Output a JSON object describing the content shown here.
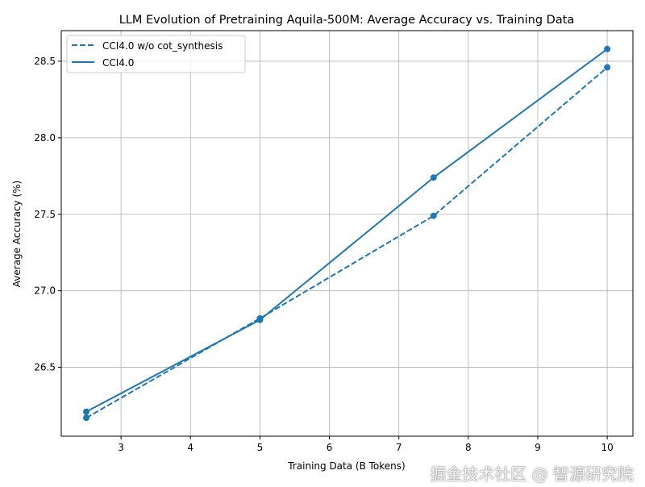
{
  "chart_data": {
    "type": "line",
    "title": "LLM Evolution of Pretraining Aquila-500M: Average Accuracy vs. Training Data",
    "xlabel": "Training Data (B Tokens)",
    "ylabel": "Average Accuracy (%)",
    "xlim": [
      2.14,
      10.37
    ],
    "ylim": [
      26.05,
      28.7
    ],
    "xticks": [
      3,
      4,
      5,
      6,
      7,
      8,
      9,
      10
    ],
    "yticks": [
      26.5,
      27.0,
      27.5,
      28.0,
      28.5
    ],
    "ytick_labels": [
      "26.5",
      "27.0",
      "27.5",
      "28.0",
      "28.5"
    ],
    "grid": true,
    "legend_position": "top-left",
    "x": [
      2.5,
      5,
      7.5,
      10
    ],
    "series": [
      {
        "name": "CCI4.0 w/o cot_synthesis",
        "values": [
          26.17,
          26.82,
          27.49,
          28.46
        ],
        "style": "dashed",
        "color": "#1f77b4"
      },
      {
        "name": "CCI4.0",
        "values": [
          26.21,
          26.81,
          27.74,
          28.58
        ],
        "style": "solid",
        "color": "#1f77b4"
      }
    ]
  },
  "watermark": "掘金技术社区 @ 智源研究院"
}
